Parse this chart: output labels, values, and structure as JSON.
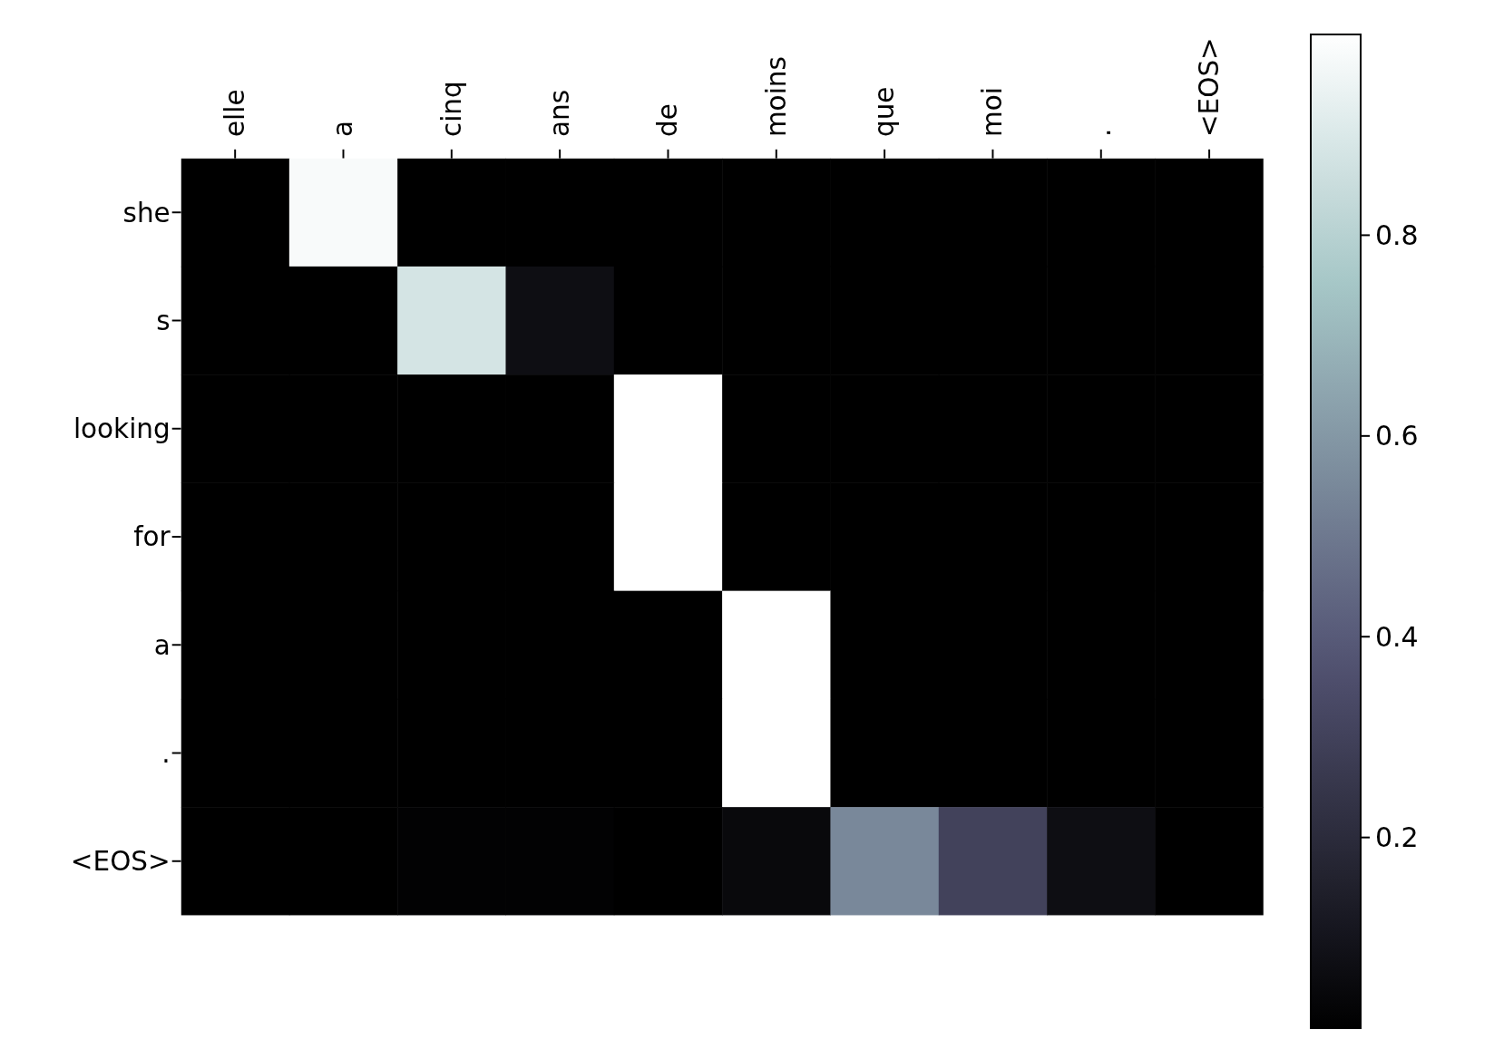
{
  "chart_data": {
    "type": "heatmap",
    "categories": [
      "elle",
      "a",
      "cinq",
      "ans",
      "de",
      "moins",
      "que",
      "moi",
      ".",
      "<EOS>"
    ],
    "y_categories": [
      "she",
      "s",
      "looking",
      "for",
      "a",
      ".",
      "<EOS>"
    ],
    "cells": [
      [
        0.01,
        0.98,
        0.01,
        0.01,
        0.01,
        0.01,
        0.01,
        0.01,
        0.01,
        0.01
      ],
      [
        0.01,
        0.01,
        0.88,
        0.07,
        0.01,
        0.01,
        0.01,
        0.01,
        0.01,
        0.01
      ],
      [
        0.01,
        0.01,
        0.01,
        0.01,
        1.0,
        0.01,
        0.01,
        0.01,
        0.01,
        0.01
      ],
      [
        0.01,
        0.01,
        0.01,
        0.01,
        1.0,
        0.01,
        0.01,
        0.01,
        0.01,
        0.01
      ],
      [
        0.01,
        0.01,
        0.01,
        0.01,
        0.01,
        1.0,
        0.01,
        0.01,
        0.01,
        0.01
      ],
      [
        0.01,
        0.01,
        0.01,
        0.01,
        0.01,
        1.0,
        0.01,
        0.01,
        0.01,
        0.01
      ],
      [
        0.01,
        0.01,
        0.02,
        0.02,
        0.01,
        0.05,
        0.55,
        0.3,
        0.07,
        0.01
      ]
    ],
    "clim": [
      0.01,
      1.0
    ],
    "cticks": [
      0.2,
      0.4,
      0.6,
      0.8
    ]
  }
}
